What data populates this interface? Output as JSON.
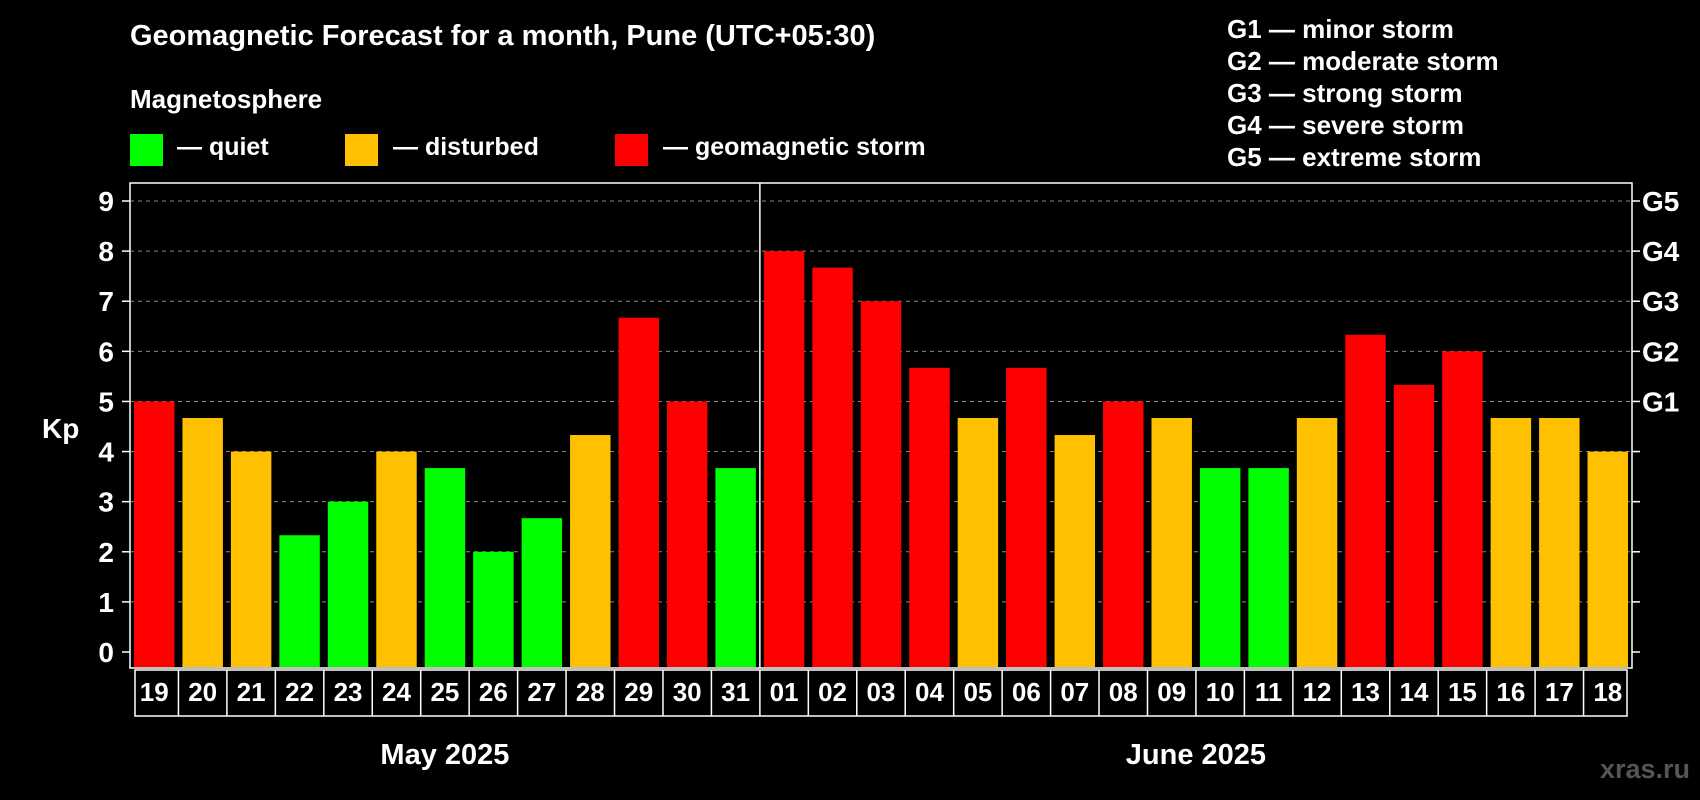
{
  "header": {
    "title": "Geomagnetic Forecast for a month, Pune (UTC+05:30)",
    "subtitle": "Magnetosphere"
  },
  "legend": {
    "items": [
      {
        "label": "— quiet",
        "color": "#00ff00"
      },
      {
        "label": "— disturbed",
        "color": "#ffc000"
      },
      {
        "label": "— geomagnetic storm",
        "color": "#ff0000"
      }
    ],
    "storm_levels": [
      "G1 — minor storm",
      "G2 — moderate storm",
      "G3 — strong storm",
      "G4 — severe storm",
      "G5 — extreme storm"
    ]
  },
  "watermark": "xras.ru",
  "chart_data": {
    "type": "bar",
    "title": "Geomagnetic Forecast for a month, Pune (UTC+05:30)",
    "ylabel": "Kp",
    "ylim": [
      0,
      9
    ],
    "yticks": [
      "0",
      "1",
      "2",
      "3",
      "4",
      "5",
      "6",
      "7",
      "8",
      "9"
    ],
    "right_axis": [
      {
        "value": 5,
        "label": "G1"
      },
      {
        "value": 6,
        "label": "G2"
      },
      {
        "value": 7,
        "label": "G3"
      },
      {
        "value": 8,
        "label": "G4"
      },
      {
        "value": 9,
        "label": "G5"
      }
    ],
    "months": [
      {
        "label": "May 2025",
        "count": 13
      },
      {
        "label": "June 2025",
        "count": 18
      }
    ],
    "categories": [
      "19",
      "20",
      "21",
      "22",
      "23",
      "24",
      "25",
      "26",
      "27",
      "28",
      "29",
      "30",
      "31",
      "01",
      "02",
      "03",
      "04",
      "05",
      "06",
      "07",
      "08",
      "09",
      "10",
      "11",
      "12",
      "13",
      "14",
      "15",
      "16",
      "17",
      "18"
    ],
    "values": [
      5,
      4.67,
      4,
      2.33,
      3,
      4,
      3.67,
      2,
      2.67,
      4.33,
      6.67,
      5,
      3.67,
      8,
      7.67,
      7,
      5.67,
      4.67,
      5.67,
      4.33,
      5,
      4.67,
      3.67,
      3.67,
      4.67,
      6.33,
      5.33,
      6,
      4.67,
      4.67,
      4
    ],
    "levels": [
      "storm",
      "disturbed",
      "disturbed",
      "quiet",
      "quiet",
      "disturbed",
      "quiet",
      "quiet",
      "quiet",
      "disturbed",
      "storm",
      "storm",
      "quiet",
      "storm",
      "storm",
      "storm",
      "storm",
      "disturbed",
      "storm",
      "disturbed",
      "storm",
      "disturbed",
      "quiet",
      "quiet",
      "disturbed",
      "storm",
      "storm",
      "storm",
      "disturbed",
      "disturbed",
      "disturbed"
    ],
    "level_colors": {
      "quiet": "#00ff00",
      "disturbed": "#ffc000",
      "storm": "#ff0000"
    },
    "grid": true
  }
}
